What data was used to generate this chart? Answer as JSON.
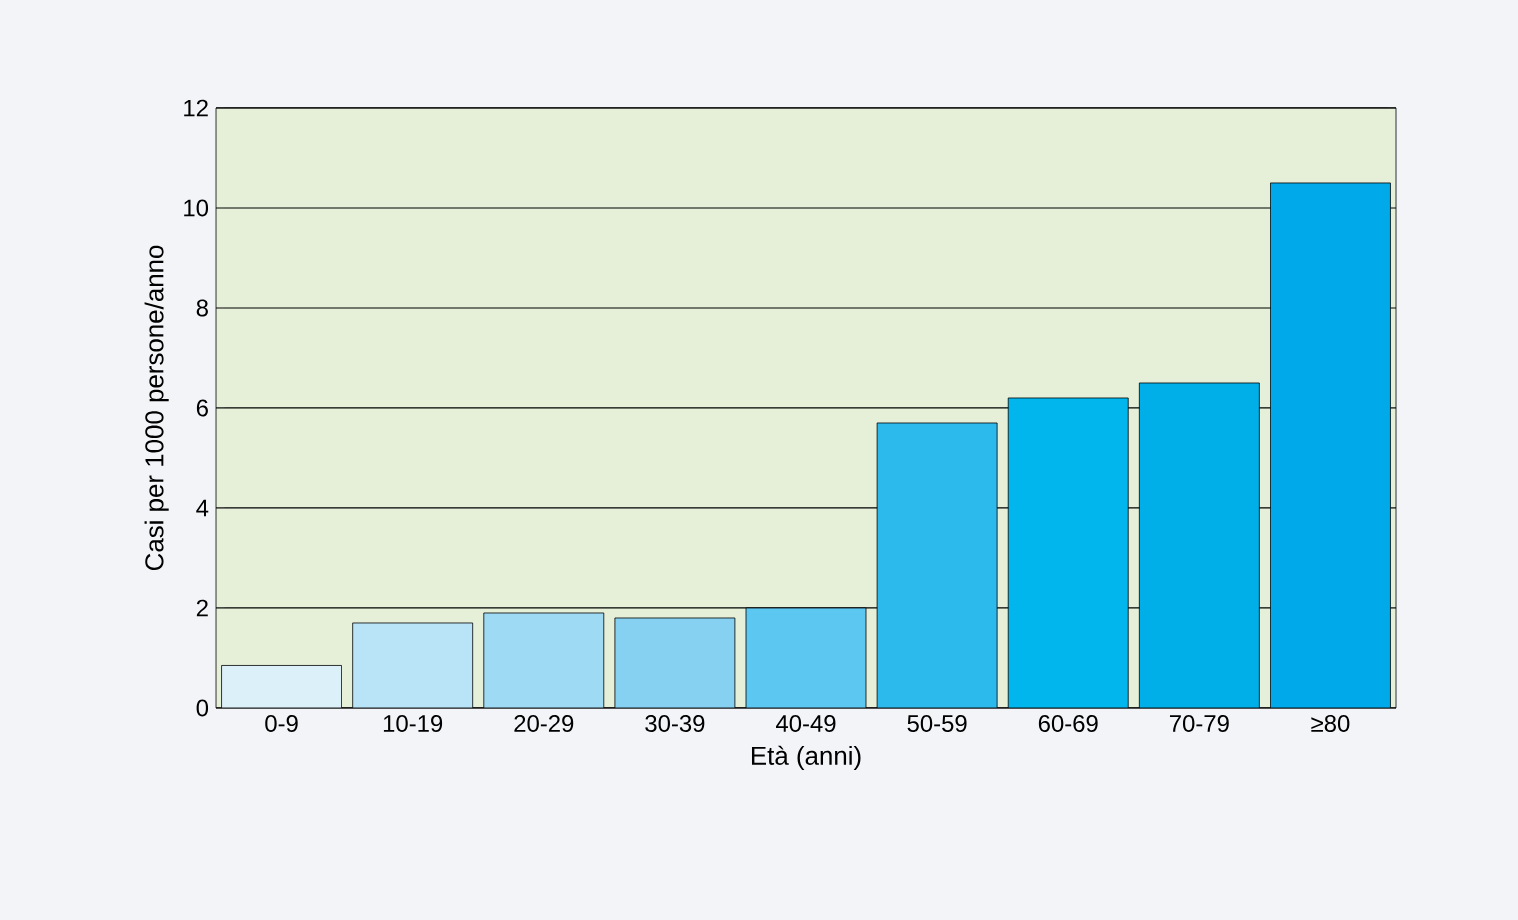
{
  "chart_data": {
    "type": "bar",
    "xlabel": "Età (anni)",
    "ylabel": "Casi per 1000 persone/anno",
    "categories": [
      "0-9",
      "10-19",
      "20-29",
      "30-39",
      "40-49",
      "50-59",
      "60-69",
      "70-79",
      "≥80"
    ],
    "values": [
      0.85,
      1.7,
      1.9,
      1.8,
      2.0,
      5.7,
      6.2,
      6.5,
      10.5
    ],
    "colors": [
      "#dcf0fa",
      "#b9e4f8",
      "#9edaf4",
      "#86d0f1",
      "#5cc8f2",
      "#2cb9eb",
      "#00b6ec",
      "#00afe8",
      "#00aaea"
    ],
    "ylim": [
      0,
      12
    ],
    "yticks": [
      0,
      2,
      4,
      6,
      8,
      10,
      12
    ],
    "grid": "y"
  }
}
